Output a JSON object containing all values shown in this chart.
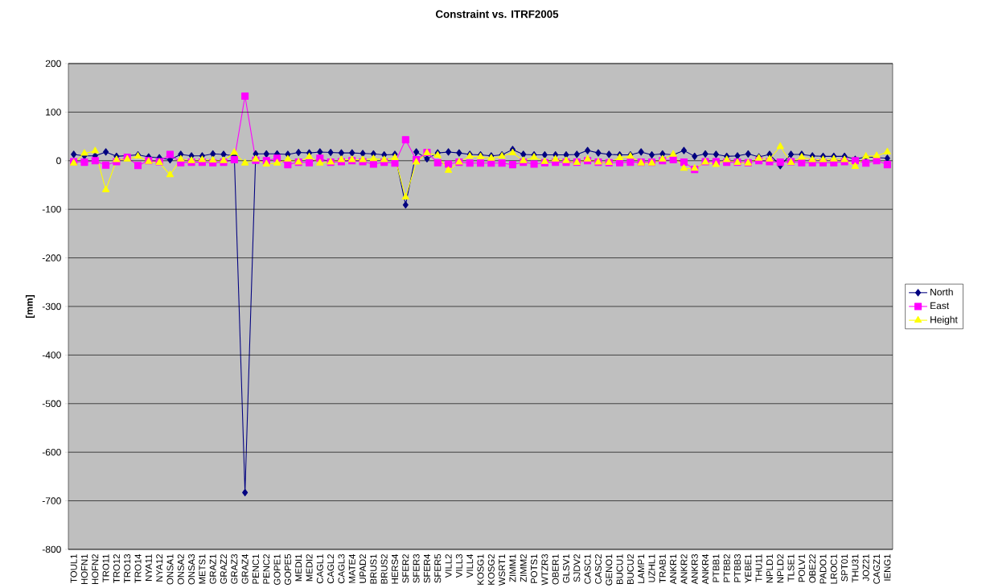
{
  "chart_data": {
    "type": "line",
    "title": "Constraint vs. ITRF2005",
    "ylabel": "[mm]",
    "categories": [
      "TOUL1",
      "HOFN1",
      "HOFN2",
      "TRO11",
      "TRO12",
      "TRO13",
      "TRO14",
      "NYA11",
      "NYA12",
      "ONSA1",
      "ONSA2",
      "ONSA3",
      "METS1",
      "GRAZ1",
      "GRAZ2",
      "GRAZ3",
      "GRAZ4",
      "PENC1",
      "PENC2",
      "GOPE1",
      "GOPE5",
      "MEDI1",
      "MEDI2",
      "CAGL1",
      "CAGL2",
      "CAGL3",
      "MATE4",
      "UPAD2",
      "BRUS1",
      "BRUS2",
      "HERS4",
      "SFER2",
      "SFER3",
      "SFER4",
      "SFER5",
      "VILL2",
      "VILL3",
      "VILL4",
      "KOSG1",
      "KOSG2",
      "WSRT1",
      "ZIMM1",
      "ZIMM2",
      "POTS1",
      "WTZR3",
      "OBER1",
      "GLSV1",
      "SJDV2",
      "CASC1",
      "CASC2",
      "GENO1",
      "BUCU1",
      "BUCU2",
      "LAMP1",
      "UZHL1",
      "TRAB1",
      "ANKR1",
      "ANKR2",
      "ANKR3",
      "ANKR4",
      "PTBB1",
      "PTBB2",
      "PTBB3",
      "YEBE1",
      "THU11",
      "NPLD1",
      "NPLD2",
      "TLSE1",
      "POLV1",
      "OBE22",
      "PADO1",
      "LROC1",
      "SPT01",
      "THU31",
      "JOZ21",
      "CAGZ1",
      "IENG1"
    ],
    "series": [
      {
        "name": "North",
        "color": "#000080",
        "marker": "diamond",
        "values": [
          13,
          10,
          10,
          18,
          9,
          null,
          12,
          8,
          6,
          2,
          13,
          10,
          10,
          14,
          13,
          10,
          -683,
          14,
          14,
          14,
          13,
          17,
          16,
          18,
          17,
          16,
          16,
          15,
          14,
          12,
          13,
          -91,
          18,
          4,
          16,
          18,
          16,
          13,
          12,
          10,
          12,
          23,
          13,
          12,
          12,
          12,
          12,
          13,
          21,
          16,
          13,
          12,
          12,
          18,
          12,
          14,
          12,
          21,
          9,
          14,
          13,
          9,
          10,
          14,
          8,
          13,
          -10,
          13,
          13,
          10,
          9,
          9,
          9,
          3,
          8,
          null,
          5
        ]
      },
      {
        "name": "East",
        "color": "#ff00ff",
        "marker": "square",
        "values": [
          -2,
          -3,
          0,
          -9,
          -2,
          7,
          -10,
          0,
          -2,
          13,
          -4,
          -3,
          -3,
          -4,
          -3,
          2,
          133,
          1,
          0,
          5,
          -8,
          -3,
          -4,
          5,
          -3,
          -2,
          0,
          -2,
          -7,
          -3,
          -5,
          43,
          2,
          17,
          -4,
          -7,
          -3,
          -5,
          -5,
          -5,
          -5,
          -8,
          -3,
          -7,
          -4,
          -3,
          -3,
          -3,
          0,
          -3,
          -4,
          -4,
          -3,
          -3,
          -3,
          0,
          2,
          -3,
          -18,
          -2,
          -2,
          -3,
          -3,
          -4,
          0,
          -2,
          -3,
          -2,
          -4,
          -4,
          -4,
          -4,
          -2,
          0,
          -5,
          0,
          -8
        ]
      },
      {
        "name": "Height",
        "color": "#ffff00",
        "marker": "triangle",
        "values": [
          -5,
          15,
          20,
          -60,
          2,
          3,
          9,
          -2,
          -4,
          -29,
          3,
          0,
          2,
          1,
          0,
          17,
          -5,
          3,
          -7,
          -5,
          3,
          -3,
          8,
          -5,
          -3,
          2,
          2,
          2,
          4,
          2,
          6,
          -75,
          -3,
          16,
          11,
          -20,
          -3,
          9,
          8,
          5,
          9,
          16,
          0,
          7,
          -2,
          3,
          0,
          -4,
          3,
          -3,
          -4,
          6,
          9,
          -5,
          -5,
          3,
          13,
          -16,
          -16,
          -3,
          -8,
          2,
          -4,
          -5,
          5,
          3,
          29,
          -4,
          7,
          2,
          2,
          3,
          2,
          -12,
          9,
          10,
          18
        ]
      }
    ],
    "ylim": [
      -800,
      200
    ],
    "yticks": [
      -800,
      -700,
      -600,
      -500,
      -400,
      -300,
      -200,
      -100,
      0,
      100,
      200
    ],
    "grid": "y",
    "legend": "right",
    "line_style": "solid"
  }
}
